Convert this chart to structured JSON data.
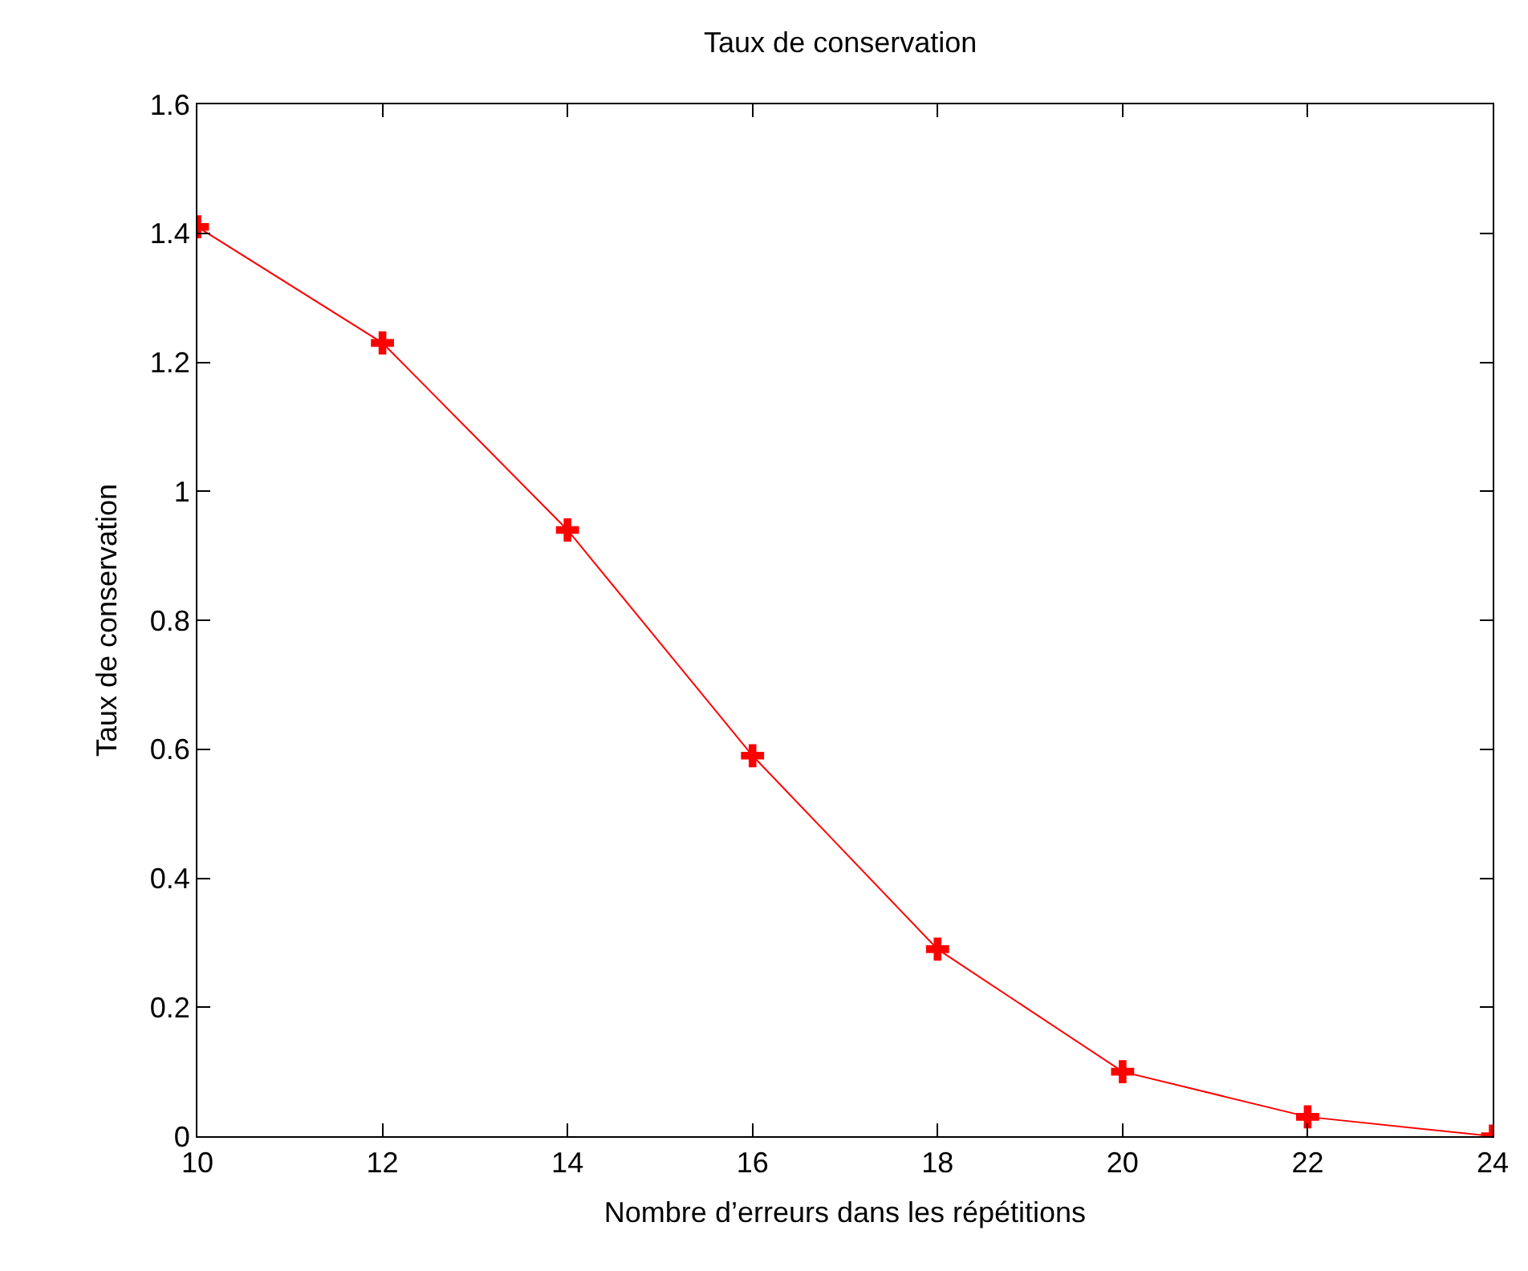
{
  "chart_data": {
    "type": "line",
    "title": "Taux de conservation",
    "xlabel": "Nombre d’erreurs dans les répétitions",
    "ylabel": "Taux de conservation",
    "x": [
      10,
      12,
      14,
      16,
      18,
      20,
      22,
      24
    ],
    "series": [
      {
        "color": "#ff0000",
        "values": [
          1.41,
          1.23,
          0.94,
          0.59,
          0.29,
          0.1,
          0.03,
          0.0
        ]
      }
    ],
    "xlim": [
      10,
      24
    ],
    "xticks": [
      10,
      12,
      14,
      16,
      18,
      20,
      22,
      24
    ],
    "ylim": [
      0,
      1.6
    ],
    "yticks": [
      0,
      0.2,
      0.4,
      0.6,
      0.8,
      1,
      1.2,
      1.4,
      1.6
    ],
    "legend": false,
    "marker": "cross",
    "line_style": "solid"
  }
}
